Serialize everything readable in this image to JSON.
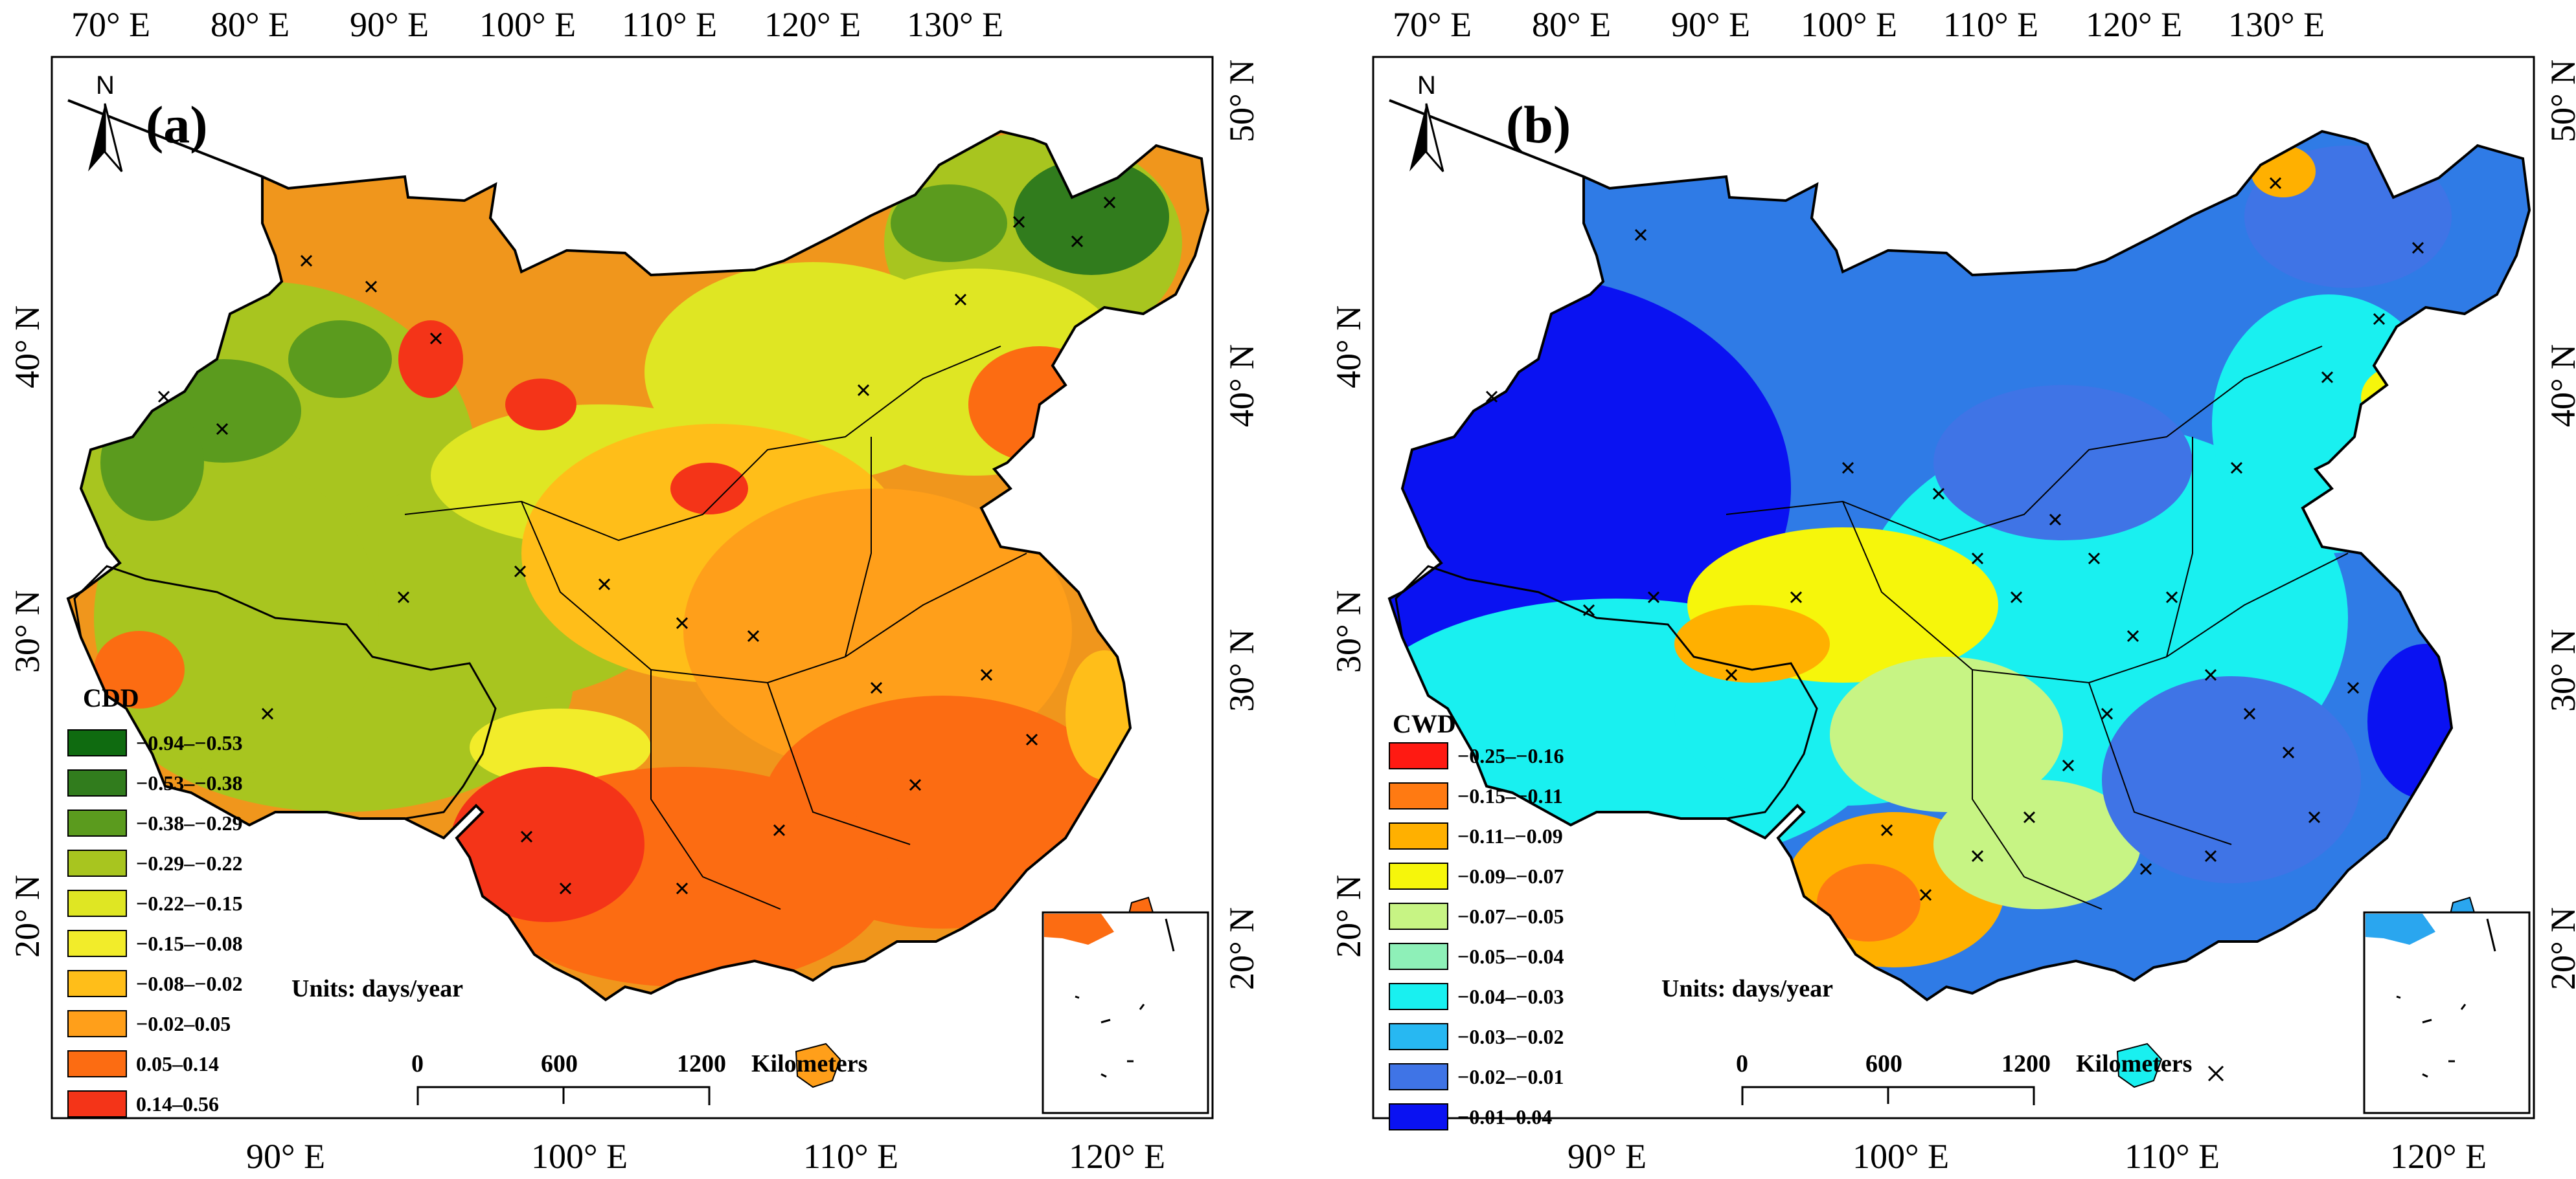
{
  "colors": {
    "cdd": [
      "#0f6b10",
      "#317c1d",
      "#5b9b1e",
      "#a8c51f",
      "#dfe623",
      "#f2ec2a",
      "#ffbe19",
      "#ff9f1a",
      "#fc6c12",
      "#f43418"
    ],
    "cwd": [
      "#ff1a12",
      "#ff7a12",
      "#ffb000",
      "#f6f60b",
      "#c7f484",
      "#8ef0b8",
      "#19f0f0",
      "#27b8f2",
      "#3f74e6",
      "#0a12f2"
    ]
  },
  "panels": [
    {
      "label": "(a)",
      "north": "N",
      "top_ticks": [
        "70° E",
        "80° E",
        "90° E",
        "100° E",
        "110° E",
        "120° E",
        "130° E"
      ],
      "bottom_ticks": [
        "90° E",
        "100° E",
        "110° E",
        "120° E"
      ],
      "right_ticks": [
        "50° N",
        "40° N",
        "30° N",
        "20° N"
      ],
      "left_ticks": [
        "40° N",
        "30° N",
        "20° N"
      ],
      "legend_title": "CDD",
      "legend": [
        "−0.94–−0.53",
        "−0.53–−0.38",
        "−0.38–−0.29",
        "−0.29–−0.22",
        "−0.22–−0.15",
        "−0.15–−0.08",
        "−0.08–−0.02",
        "−0.02–0.05",
        "0.05–0.14",
        "0.14–0.56"
      ],
      "units": "Units: days/year",
      "scale": [
        "0",
        "600",
        "1200",
        "Kilometers"
      ]
    },
    {
      "label": "(b)",
      "north": "N",
      "top_ticks": [
        "70° E",
        "80° E",
        "90° E",
        "100° E",
        "110° E",
        "120° E",
        "130° E"
      ],
      "bottom_ticks": [
        "90° E",
        "100° E",
        "110° E",
        "120° E"
      ],
      "right_ticks": [
        "50° N",
        "40° N",
        "30° N",
        "20° N"
      ],
      "left_ticks": [
        "40° N",
        "30° N",
        "20° N"
      ],
      "legend_title": "CWD",
      "legend": [
        "−0.25–−0.16",
        "−0.15–−0.11",
        "−0.11–−0.09",
        "−0.09–−0.07",
        "−0.07–−0.05",
        "−0.05–−0.04",
        "−0.04–−0.03",
        "−0.03–−0.02",
        "−0.02–−0.01",
        "−0.01–0.04"
      ],
      "units": "Units: days/year",
      "scale": [
        "0",
        "600",
        "1200",
        "Kilometers"
      ]
    }
  ]
}
